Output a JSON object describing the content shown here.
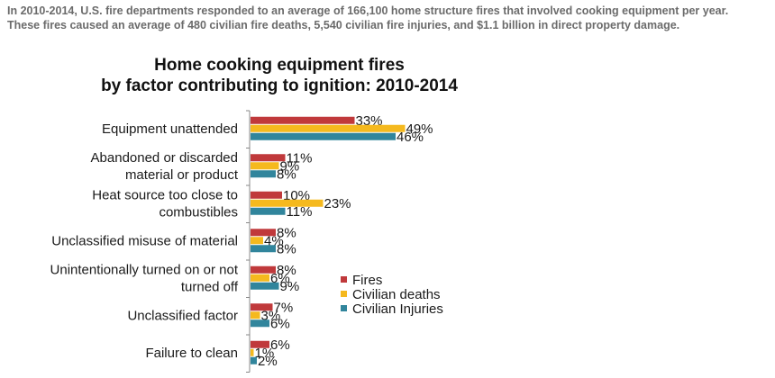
{
  "intro": {
    "line1": "In 2010-2014, U.S. fire departments responded to an average of 166,100 home structure fires that involved cooking equipment per year.",
    "line2": "These fires caused an average of 480 civilian fire deaths, 5,540 civilian fire injuries, and $1.1 billion in direct property damage."
  },
  "chart_data": {
    "type": "bar",
    "orientation": "horizontal",
    "title_line1": "Home cooking equipment fires",
    "title_line2": "by factor contributing to ignition:  2010-2014",
    "categories": [
      [
        "Equipment unattended"
      ],
      [
        "Abandoned or discarded",
        "material or product"
      ],
      [
        "Heat source too close to",
        "combustibles"
      ],
      [
        "Unclassified misuse of material"
      ],
      [
        "Unintentionally turned on or not",
        "turned off"
      ],
      [
        "Unclassified factor"
      ],
      [
        "Failure to clean"
      ]
    ],
    "series": [
      {
        "name": "Fires",
        "color": "#c0393b",
        "values": [
          33,
          11,
          10,
          8,
          8,
          7,
          6
        ]
      },
      {
        "name": "Civilian deaths",
        "color": "#f5b91e",
        "values": [
          49,
          9,
          23,
          4,
          6,
          3,
          1
        ]
      },
      {
        "name": "Civilian Injuries",
        "color": "#31859c",
        "values": [
          46,
          8,
          11,
          8,
          9,
          6,
          2
        ]
      }
    ],
    "value_suffix": "%",
    "legend_position": "right",
    "grid": false,
    "axis_color": "#888888"
  }
}
